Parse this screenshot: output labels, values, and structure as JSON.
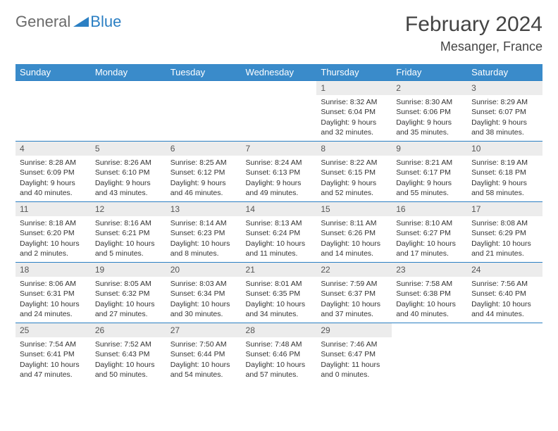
{
  "brand": {
    "part1": "General",
    "part2": "Blue"
  },
  "title": "February 2024",
  "location": "Mesanger, France",
  "colors": {
    "header_bg": "#3a8bca",
    "header_fg": "#ffffff",
    "rule": "#2b7fc3",
    "daynum_bg": "#ececec",
    "logo_gray": "#6a6a6a",
    "logo_blue": "#2b7fc3"
  },
  "day_labels": [
    "Sunday",
    "Monday",
    "Tuesday",
    "Wednesday",
    "Thursday",
    "Friday",
    "Saturday"
  ],
  "weeks": [
    [
      null,
      null,
      null,
      null,
      {
        "n": "1",
        "sr": "Sunrise: 8:32 AM",
        "ss": "Sunset: 6:04 PM",
        "dl1": "Daylight: 9 hours",
        "dl2": "and 32 minutes."
      },
      {
        "n": "2",
        "sr": "Sunrise: 8:30 AM",
        "ss": "Sunset: 6:06 PM",
        "dl1": "Daylight: 9 hours",
        "dl2": "and 35 minutes."
      },
      {
        "n": "3",
        "sr": "Sunrise: 8:29 AM",
        "ss": "Sunset: 6:07 PM",
        "dl1": "Daylight: 9 hours",
        "dl2": "and 38 minutes."
      }
    ],
    [
      {
        "n": "4",
        "sr": "Sunrise: 8:28 AM",
        "ss": "Sunset: 6:09 PM",
        "dl1": "Daylight: 9 hours",
        "dl2": "and 40 minutes."
      },
      {
        "n": "5",
        "sr": "Sunrise: 8:26 AM",
        "ss": "Sunset: 6:10 PM",
        "dl1": "Daylight: 9 hours",
        "dl2": "and 43 minutes."
      },
      {
        "n": "6",
        "sr": "Sunrise: 8:25 AM",
        "ss": "Sunset: 6:12 PM",
        "dl1": "Daylight: 9 hours",
        "dl2": "and 46 minutes."
      },
      {
        "n": "7",
        "sr": "Sunrise: 8:24 AM",
        "ss": "Sunset: 6:13 PM",
        "dl1": "Daylight: 9 hours",
        "dl2": "and 49 minutes."
      },
      {
        "n": "8",
        "sr": "Sunrise: 8:22 AM",
        "ss": "Sunset: 6:15 PM",
        "dl1": "Daylight: 9 hours",
        "dl2": "and 52 minutes."
      },
      {
        "n": "9",
        "sr": "Sunrise: 8:21 AM",
        "ss": "Sunset: 6:17 PM",
        "dl1": "Daylight: 9 hours",
        "dl2": "and 55 minutes."
      },
      {
        "n": "10",
        "sr": "Sunrise: 8:19 AM",
        "ss": "Sunset: 6:18 PM",
        "dl1": "Daylight: 9 hours",
        "dl2": "and 58 minutes."
      }
    ],
    [
      {
        "n": "11",
        "sr": "Sunrise: 8:18 AM",
        "ss": "Sunset: 6:20 PM",
        "dl1": "Daylight: 10 hours",
        "dl2": "and 2 minutes."
      },
      {
        "n": "12",
        "sr": "Sunrise: 8:16 AM",
        "ss": "Sunset: 6:21 PM",
        "dl1": "Daylight: 10 hours",
        "dl2": "and 5 minutes."
      },
      {
        "n": "13",
        "sr": "Sunrise: 8:14 AM",
        "ss": "Sunset: 6:23 PM",
        "dl1": "Daylight: 10 hours",
        "dl2": "and 8 minutes."
      },
      {
        "n": "14",
        "sr": "Sunrise: 8:13 AM",
        "ss": "Sunset: 6:24 PM",
        "dl1": "Daylight: 10 hours",
        "dl2": "and 11 minutes."
      },
      {
        "n": "15",
        "sr": "Sunrise: 8:11 AM",
        "ss": "Sunset: 6:26 PM",
        "dl1": "Daylight: 10 hours",
        "dl2": "and 14 minutes."
      },
      {
        "n": "16",
        "sr": "Sunrise: 8:10 AM",
        "ss": "Sunset: 6:27 PM",
        "dl1": "Daylight: 10 hours",
        "dl2": "and 17 minutes."
      },
      {
        "n": "17",
        "sr": "Sunrise: 8:08 AM",
        "ss": "Sunset: 6:29 PM",
        "dl1": "Daylight: 10 hours",
        "dl2": "and 21 minutes."
      }
    ],
    [
      {
        "n": "18",
        "sr": "Sunrise: 8:06 AM",
        "ss": "Sunset: 6:31 PM",
        "dl1": "Daylight: 10 hours",
        "dl2": "and 24 minutes."
      },
      {
        "n": "19",
        "sr": "Sunrise: 8:05 AM",
        "ss": "Sunset: 6:32 PM",
        "dl1": "Daylight: 10 hours",
        "dl2": "and 27 minutes."
      },
      {
        "n": "20",
        "sr": "Sunrise: 8:03 AM",
        "ss": "Sunset: 6:34 PM",
        "dl1": "Daylight: 10 hours",
        "dl2": "and 30 minutes."
      },
      {
        "n": "21",
        "sr": "Sunrise: 8:01 AM",
        "ss": "Sunset: 6:35 PM",
        "dl1": "Daylight: 10 hours",
        "dl2": "and 34 minutes."
      },
      {
        "n": "22",
        "sr": "Sunrise: 7:59 AM",
        "ss": "Sunset: 6:37 PM",
        "dl1": "Daylight: 10 hours",
        "dl2": "and 37 minutes."
      },
      {
        "n": "23",
        "sr": "Sunrise: 7:58 AM",
        "ss": "Sunset: 6:38 PM",
        "dl1": "Daylight: 10 hours",
        "dl2": "and 40 minutes."
      },
      {
        "n": "24",
        "sr": "Sunrise: 7:56 AM",
        "ss": "Sunset: 6:40 PM",
        "dl1": "Daylight: 10 hours",
        "dl2": "and 44 minutes."
      }
    ],
    [
      {
        "n": "25",
        "sr": "Sunrise: 7:54 AM",
        "ss": "Sunset: 6:41 PM",
        "dl1": "Daylight: 10 hours",
        "dl2": "and 47 minutes."
      },
      {
        "n": "26",
        "sr": "Sunrise: 7:52 AM",
        "ss": "Sunset: 6:43 PM",
        "dl1": "Daylight: 10 hours",
        "dl2": "and 50 minutes."
      },
      {
        "n": "27",
        "sr": "Sunrise: 7:50 AM",
        "ss": "Sunset: 6:44 PM",
        "dl1": "Daylight: 10 hours",
        "dl2": "and 54 minutes."
      },
      {
        "n": "28",
        "sr": "Sunrise: 7:48 AM",
        "ss": "Sunset: 6:46 PM",
        "dl1": "Daylight: 10 hours",
        "dl2": "and 57 minutes."
      },
      {
        "n": "29",
        "sr": "Sunrise: 7:46 AM",
        "ss": "Sunset: 6:47 PM",
        "dl1": "Daylight: 11 hours",
        "dl2": "and 0 minutes."
      },
      null,
      null
    ]
  ]
}
